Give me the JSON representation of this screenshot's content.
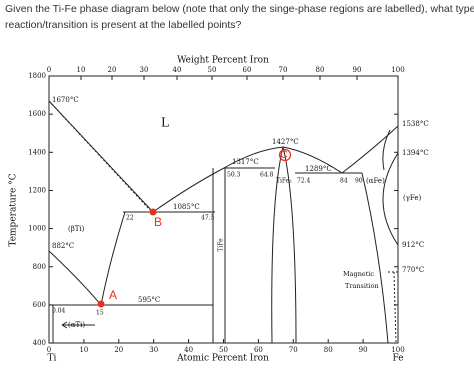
{
  "question": [
    "Given the Ti-Fe phase diagram below (note that only the singe-phase regions are labelled), what type of",
    "reaction/transition is present at the labelled points?"
  ],
  "diagram": {
    "top_axis_title": "Weight Percent Iron",
    "bottom_axis_title": "Atomic Percent Iron",
    "y_axis_title": "Temperature °C",
    "top_ticks": [
      "0",
      "10",
      "20",
      "30",
      "40",
      "50",
      "60",
      "70",
      "80",
      "90",
      "100"
    ],
    "bottom_ticks": [
      "0",
      "10",
      "20",
      "30",
      "40",
      "50",
      "60",
      "70",
      "80",
      "90",
      "100"
    ],
    "y_ticks": [
      "1800",
      "1600",
      "1400",
      "1200",
      "1000",
      "800",
      "600",
      "400"
    ],
    "left_end": "Ti",
    "right_end": "Fe",
    "phase_labels": {
      "liquid": "L",
      "beta_ti": "(βTi)",
      "alpha_ti": "(αTi)",
      "gamma_fe": "(γFe)",
      "alpha_fe": "(αFe)",
      "tife": "TiFe",
      "tife2": "TiFe₂"
    },
    "temperatures": {
      "t1670": "1670°C",
      "t882": "882°C",
      "t595": "595°C",
      "t1085": "1085°C",
      "t1317": "1317°C",
      "t1427": "1427°C",
      "t1289": "1289°C",
      "t1538": "1538°C",
      "t1394": "1394°C",
      "t912": "912°C",
      "t770": "770°C"
    },
    "compositions": {
      "c004": "0.04",
      "c15": "15",
      "c22": "22",
      "c475": "47.5",
      "c503": "50.3",
      "c648": "64.8",
      "c724": "72.4",
      "c84": "84",
      "c90": "90"
    },
    "magnetic": [
      "Magnetic",
      "Transition"
    ],
    "points": {
      "a": "A",
      "b": "B",
      "c": "C"
    }
  }
}
